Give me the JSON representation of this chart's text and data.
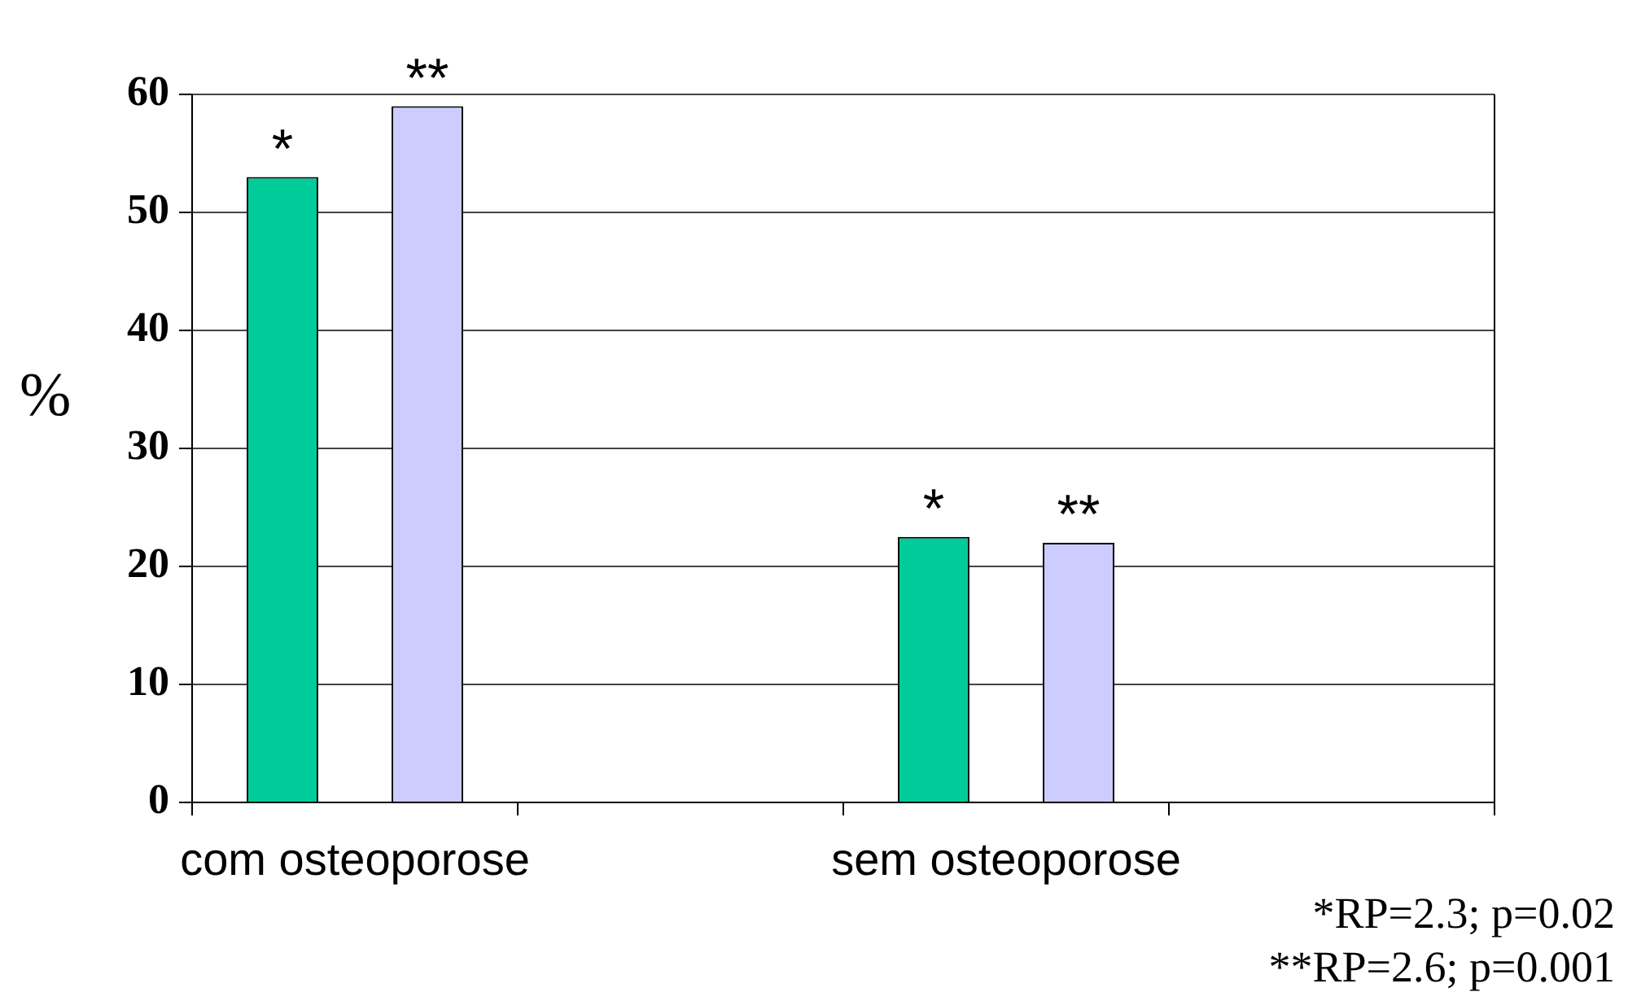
{
  "chart_data": {
    "type": "bar",
    "categories": [
      "com osteoporose",
      null,
      "sem osteoporose",
      null
    ],
    "series": [
      {
        "color": "#00cc99",
        "values": [
          53,
          null,
          22.5,
          null
        ],
        "value_labels": [
          "*",
          null,
          "*",
          null
        ]
      },
      {
        "color": "#ccccff",
        "values": [
          59,
          null,
          22,
          null
        ],
        "value_labels": [
          "**",
          null,
          "**",
          null
        ]
      }
    ],
    "ylabel": "%",
    "ylim": [
      0,
      60
    ],
    "yticks": [
      0,
      10,
      20,
      30,
      40,
      50,
      60
    ],
    "grid": "y",
    "annotations": [
      "*RP=2.3; p=0.02",
      "**RP=2.6; p=0.001"
    ]
  }
}
